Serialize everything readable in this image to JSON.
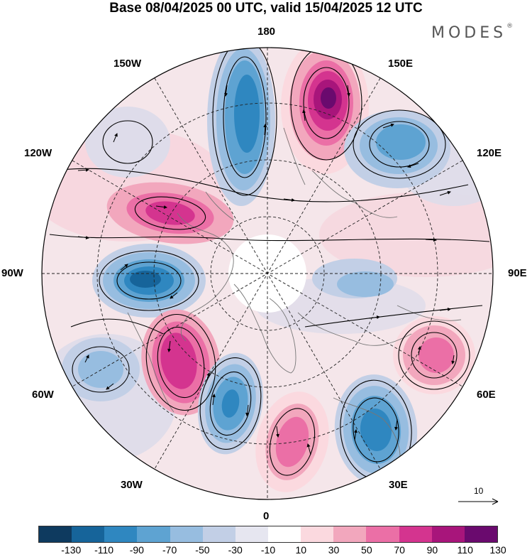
{
  "title": "Base 08/04/2025 00 UTC, valid 15/04/2025 12 UTC",
  "brand": {
    "name": "MODES",
    "mark": "®"
  },
  "map": {
    "projection": "polar stereographic, North Pole centred",
    "longitude_labels": {
      "top": "180",
      "top_left": "150W",
      "top_right": "150E",
      "upper_left": "120W",
      "upper_right": "120E",
      "left": "90W",
      "right": "90E",
      "lower_left": "60W",
      "lower_right": "60E",
      "bottom_left": "30W",
      "bottom_right": "30E",
      "bottom": "0"
    },
    "field": "anomaly contours with wind streamlines",
    "colors": {
      "ocean_land_background": "#ffffff",
      "coastline": "#777777",
      "graticule": "#222222",
      "streamline": "#000000"
    }
  },
  "wind_reference": {
    "label": "10"
  },
  "colorbar": {
    "tick_labels": [
      "-130",
      "-110",
      "-90",
      "-70",
      "-50",
      "-30",
      "-10",
      "10",
      "30",
      "50",
      "70",
      "90",
      "110",
      "130"
    ],
    "colors": [
      "#0e3a5f",
      "#16649a",
      "#2f87c0",
      "#5ea3d2",
      "#97bde0",
      "#c2cfe6",
      "#e6e6f0",
      "#ffffff",
      "#fbd9df",
      "#f2a7bd",
      "#eb6fa6",
      "#d4348f",
      "#a8157b",
      "#6a0a6e"
    ]
  }
}
